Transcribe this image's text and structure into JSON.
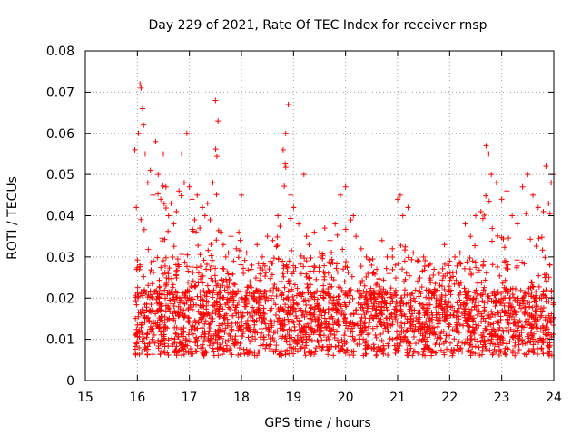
{
  "chart_data": {
    "type": "scatter",
    "title": "Day 229 of 2021, Rate Of TEC Index for receiver rnsp",
    "xlabel": "GPS time / hours",
    "ylabel": "ROTI / TECUs",
    "xlim": [
      15,
      24
    ],
    "ylim": [
      0,
      0.08
    ],
    "grid": true,
    "marker": "plus",
    "color": "#ff0000",
    "x_ticks": [
      "15",
      "16",
      "17",
      "18",
      "19",
      "20",
      "21",
      "22",
      "23",
      "24"
    ],
    "y_ticks": [
      "0",
      "0.01",
      "0.02",
      "0.03",
      "0.04",
      "0.05",
      "0.06",
      "0.07",
      "0.08"
    ],
    "series": [
      {
        "name": "ROTI",
        "x": [
          15.95,
          15.98,
          16.02,
          16.05,
          16.07,
          16.1,
          16.12,
          16.15,
          16.2,
          16.25,
          16.3,
          16.35,
          16.4,
          16.45,
          16.5,
          16.55,
          16.6,
          16.65,
          16.7,
          16.75,
          16.8,
          16.85,
          16.9,
          16.95,
          17.0,
          17.05,
          17.1,
          17.15,
          17.2,
          17.25,
          17.3,
          17.35,
          17.4,
          17.45,
          17.5,
          17.55,
          17.6,
          17.65,
          17.7,
          17.75,
          17.8,
          17.85,
          17.9,
          17.95,
          18.0,
          18.1,
          18.2,
          18.3,
          18.4,
          18.5,
          18.6,
          18.7,
          18.8,
          18.85,
          18.9,
          18.95,
          19.0,
          19.1,
          19.2,
          19.25,
          19.3,
          19.4,
          19.5,
          19.6,
          19.7,
          19.8,
          19.9,
          20.0,
          20.1,
          20.15,
          20.2,
          20.3,
          20.4,
          20.5,
          20.6,
          20.7,
          20.8,
          20.9,
          21.0,
          21.05,
          21.1,
          21.2,
          21.3,
          21.4,
          21.5,
          21.6,
          21.7,
          21.8,
          21.9,
          22.0,
          22.1,
          22.2,
          22.3,
          22.4,
          22.5,
          22.6,
          22.7,
          22.75,
          22.8,
          22.9,
          23.0,
          23.1,
          23.2,
          23.3,
          23.4,
          23.5,
          23.6,
          23.7,
          23.8,
          23.85,
          23.9,
          23.95,
          24.0
        ],
        "y": [
          0.056,
          0.042,
          0.06,
          0.072,
          0.071,
          0.066,
          0.062,
          0.055,
          0.048,
          0.051,
          0.045,
          0.058,
          0.05,
          0.044,
          0.055,
          0.047,
          0.04,
          0.043,
          0.038,
          0.041,
          0.046,
          0.055,
          0.048,
          0.06,
          0.047,
          0.044,
          0.039,
          0.045,
          0.037,
          0.042,
          0.04,
          0.043,
          0.039,
          0.048,
          0.068,
          0.063,
          0.036,
          0.033,
          0.03,
          0.031,
          0.035,
          0.029,
          0.032,
          0.036,
          0.045,
          0.031,
          0.028,
          0.033,
          0.03,
          0.035,
          0.034,
          0.04,
          0.056,
          0.06,
          0.067,
          0.045,
          0.042,
          0.038,
          0.05,
          0.035,
          0.033,
          0.036,
          0.031,
          0.037,
          0.034,
          0.038,
          0.045,
          0.047,
          0.039,
          0.04,
          0.035,
          0.032,
          0.03,
          0.028,
          0.027,
          0.034,
          0.03,
          0.032,
          0.044,
          0.045,
          0.04,
          0.042,
          0.031,
          0.029,
          0.03,
          0.028,
          0.027,
          0.026,
          0.033,
          0.029,
          0.03,
          0.031,
          0.038,
          0.035,
          0.04,
          0.041,
          0.057,
          0.055,
          0.05,
          0.048,
          0.044,
          0.046,
          0.04,
          0.038,
          0.047,
          0.05,
          0.045,
          0.042,
          0.041,
          0.052,
          0.043,
          0.048,
          0.05
        ]
      }
    ]
  }
}
